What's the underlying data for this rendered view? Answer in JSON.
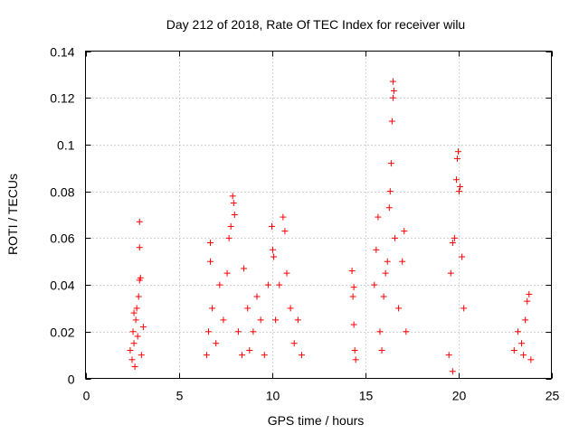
{
  "chart_data": {
    "type": "scatter",
    "title": "Day 212 of 2018, Rate Of TEC Index for receiver wilu",
    "xlabel": "GPS time / hours",
    "ylabel": "ROTI / TECUs",
    "xlim": [
      0,
      25
    ],
    "ylim": [
      0,
      0.14
    ],
    "x_ticks": [
      0,
      5,
      10,
      15,
      20,
      25
    ],
    "x_tick_labels": [
      "0",
      "5",
      "10",
      "15",
      "20",
      "25"
    ],
    "y_ticks": [
      0,
      0.02,
      0.04,
      0.06,
      0.08,
      0.1,
      0.12,
      0.14
    ],
    "y_tick_labels": [
      "0",
      "0.02",
      "0.04",
      "0.06",
      "0.08",
      "0.1",
      "0.12",
      "0.14"
    ],
    "grid": true,
    "marker": "plus",
    "marker_color": "#ff0000",
    "series": [
      {
        "name": "ROTI",
        "points": [
          [
            2.4,
            0.012
          ],
          [
            2.5,
            0.008
          ],
          [
            2.55,
            0.02
          ],
          [
            2.6,
            0.015
          ],
          [
            2.65,
            0.005
          ],
          [
            2.7,
            0.025
          ],
          [
            2.75,
            0.03
          ],
          [
            2.8,
            0.018
          ],
          [
            2.85,
            0.035
          ],
          [
            2.9,
            0.042
          ],
          [
            2.95,
            0.043
          ],
          [
            2.9,
            0.056
          ],
          [
            2.9,
            0.067
          ],
          [
            3.0,
            0.01
          ],
          [
            3.1,
            0.022
          ],
          [
            2.6,
            0.028
          ],
          [
            6.5,
            0.01
          ],
          [
            6.6,
            0.02
          ],
          [
            6.7,
            0.05
          ],
          [
            6.7,
            0.058
          ],
          [
            6.8,
            0.03
          ],
          [
            7.0,
            0.015
          ],
          [
            7.2,
            0.04
          ],
          [
            7.4,
            0.025
          ],
          [
            7.6,
            0.045
          ],
          [
            7.7,
            0.06
          ],
          [
            7.8,
            0.065
          ],
          [
            7.9,
            0.078
          ],
          [
            7.95,
            0.075
          ],
          [
            8.0,
            0.07
          ],
          [
            8.2,
            0.02
          ],
          [
            8.4,
            0.01
          ],
          [
            8.5,
            0.047
          ],
          [
            8.7,
            0.03
          ],
          [
            8.8,
            0.012
          ],
          [
            9.0,
            0.02
          ],
          [
            9.2,
            0.035
          ],
          [
            9.4,
            0.025
          ],
          [
            9.6,
            0.01
          ],
          [
            9.8,
            0.04
          ],
          [
            10.0,
            0.065
          ],
          [
            10.05,
            0.055
          ],
          [
            10.1,
            0.052
          ],
          [
            10.2,
            0.025
          ],
          [
            10.4,
            0.04
          ],
          [
            10.6,
            0.069
          ],
          [
            10.7,
            0.063
          ],
          [
            10.8,
            0.045
          ],
          [
            11.0,
            0.03
          ],
          [
            11.2,
            0.015
          ],
          [
            11.4,
            0.025
          ],
          [
            11.6,
            0.01
          ],
          [
            14.3,
            0.046
          ],
          [
            14.35,
            0.035
          ],
          [
            14.4,
            0.023
          ],
          [
            14.45,
            0.012
          ],
          [
            14.5,
            0.008
          ],
          [
            14.4,
            0.039
          ],
          [
            15.5,
            0.04
          ],
          [
            15.6,
            0.055
          ],
          [
            15.7,
            0.069
          ],
          [
            15.8,
            0.02
          ],
          [
            15.9,
            0.012
          ],
          [
            16.0,
            0.035
          ],
          [
            16.1,
            0.045
          ],
          [
            16.2,
            0.05
          ],
          [
            16.3,
            0.073
          ],
          [
            16.35,
            0.08
          ],
          [
            16.4,
            0.092
          ],
          [
            16.45,
            0.11
          ],
          [
            16.5,
            0.12
          ],
          [
            16.5,
            0.127
          ],
          [
            16.55,
            0.123
          ],
          [
            16.6,
            0.06
          ],
          [
            16.8,
            0.03
          ],
          [
            17.0,
            0.05
          ],
          [
            17.1,
            0.063
          ],
          [
            17.2,
            0.02
          ],
          [
            19.5,
            0.01
          ],
          [
            19.6,
            0.045
          ],
          [
            19.7,
            0.058
          ],
          [
            19.8,
            0.06
          ],
          [
            19.9,
            0.085
          ],
          [
            19.95,
            0.094
          ],
          [
            20.0,
            0.097
          ],
          [
            20.05,
            0.08
          ],
          [
            20.1,
            0.082
          ],
          [
            20.2,
            0.052
          ],
          [
            20.3,
            0.03
          ],
          [
            19.7,
            0.003
          ],
          [
            23.0,
            0.012
          ],
          [
            23.2,
            0.02
          ],
          [
            23.4,
            0.015
          ],
          [
            23.5,
            0.01
          ],
          [
            23.6,
            0.025
          ],
          [
            23.7,
            0.033
          ],
          [
            23.8,
            0.036
          ],
          [
            23.9,
            0.008
          ]
        ]
      }
    ]
  }
}
